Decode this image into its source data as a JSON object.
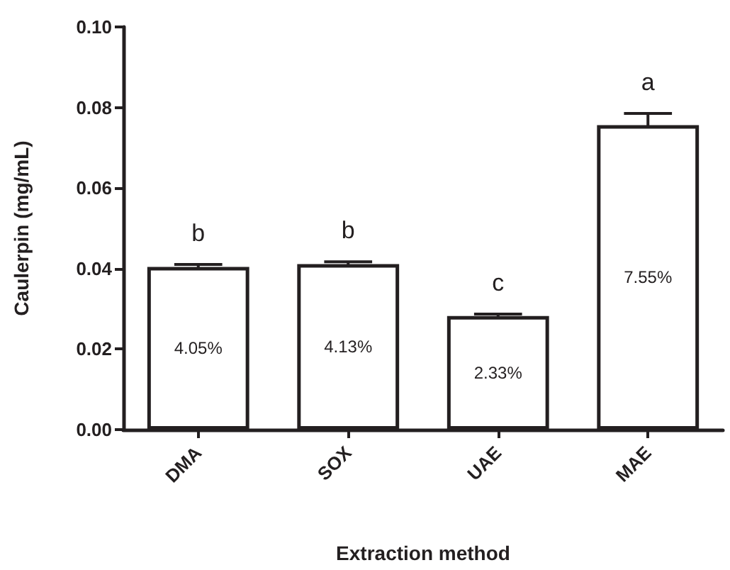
{
  "chart_data": {
    "type": "bar",
    "xlabel": "Extraction method",
    "ylabel": "Caulerpin (mg/mL)",
    "categories": [
      "DMA",
      "SOX",
      "UAE",
      "MAE"
    ],
    "values": [
      0.0404,
      0.0411,
      0.0282,
      0.0756
    ],
    "errors": [
      0.0006,
      0.0006,
      0.0005,
      0.0029
    ],
    "color": "#ffffff",
    "ylim": [
      0,
      0.1
    ],
    "yticks": [
      {
        "value": 0,
        "label": "0.00"
      },
      0.02,
      0.04,
      0.06,
      0.08,
      {
        "value": 0.1,
        "label": "0.10"
      }
    ],
    "grid": false,
    "annotations": [
      "b",
      "b",
      "c",
      "a",
      "4.05%",
      "4.13%",
      "2.33%",
      "7.55%"
    ]
  }
}
